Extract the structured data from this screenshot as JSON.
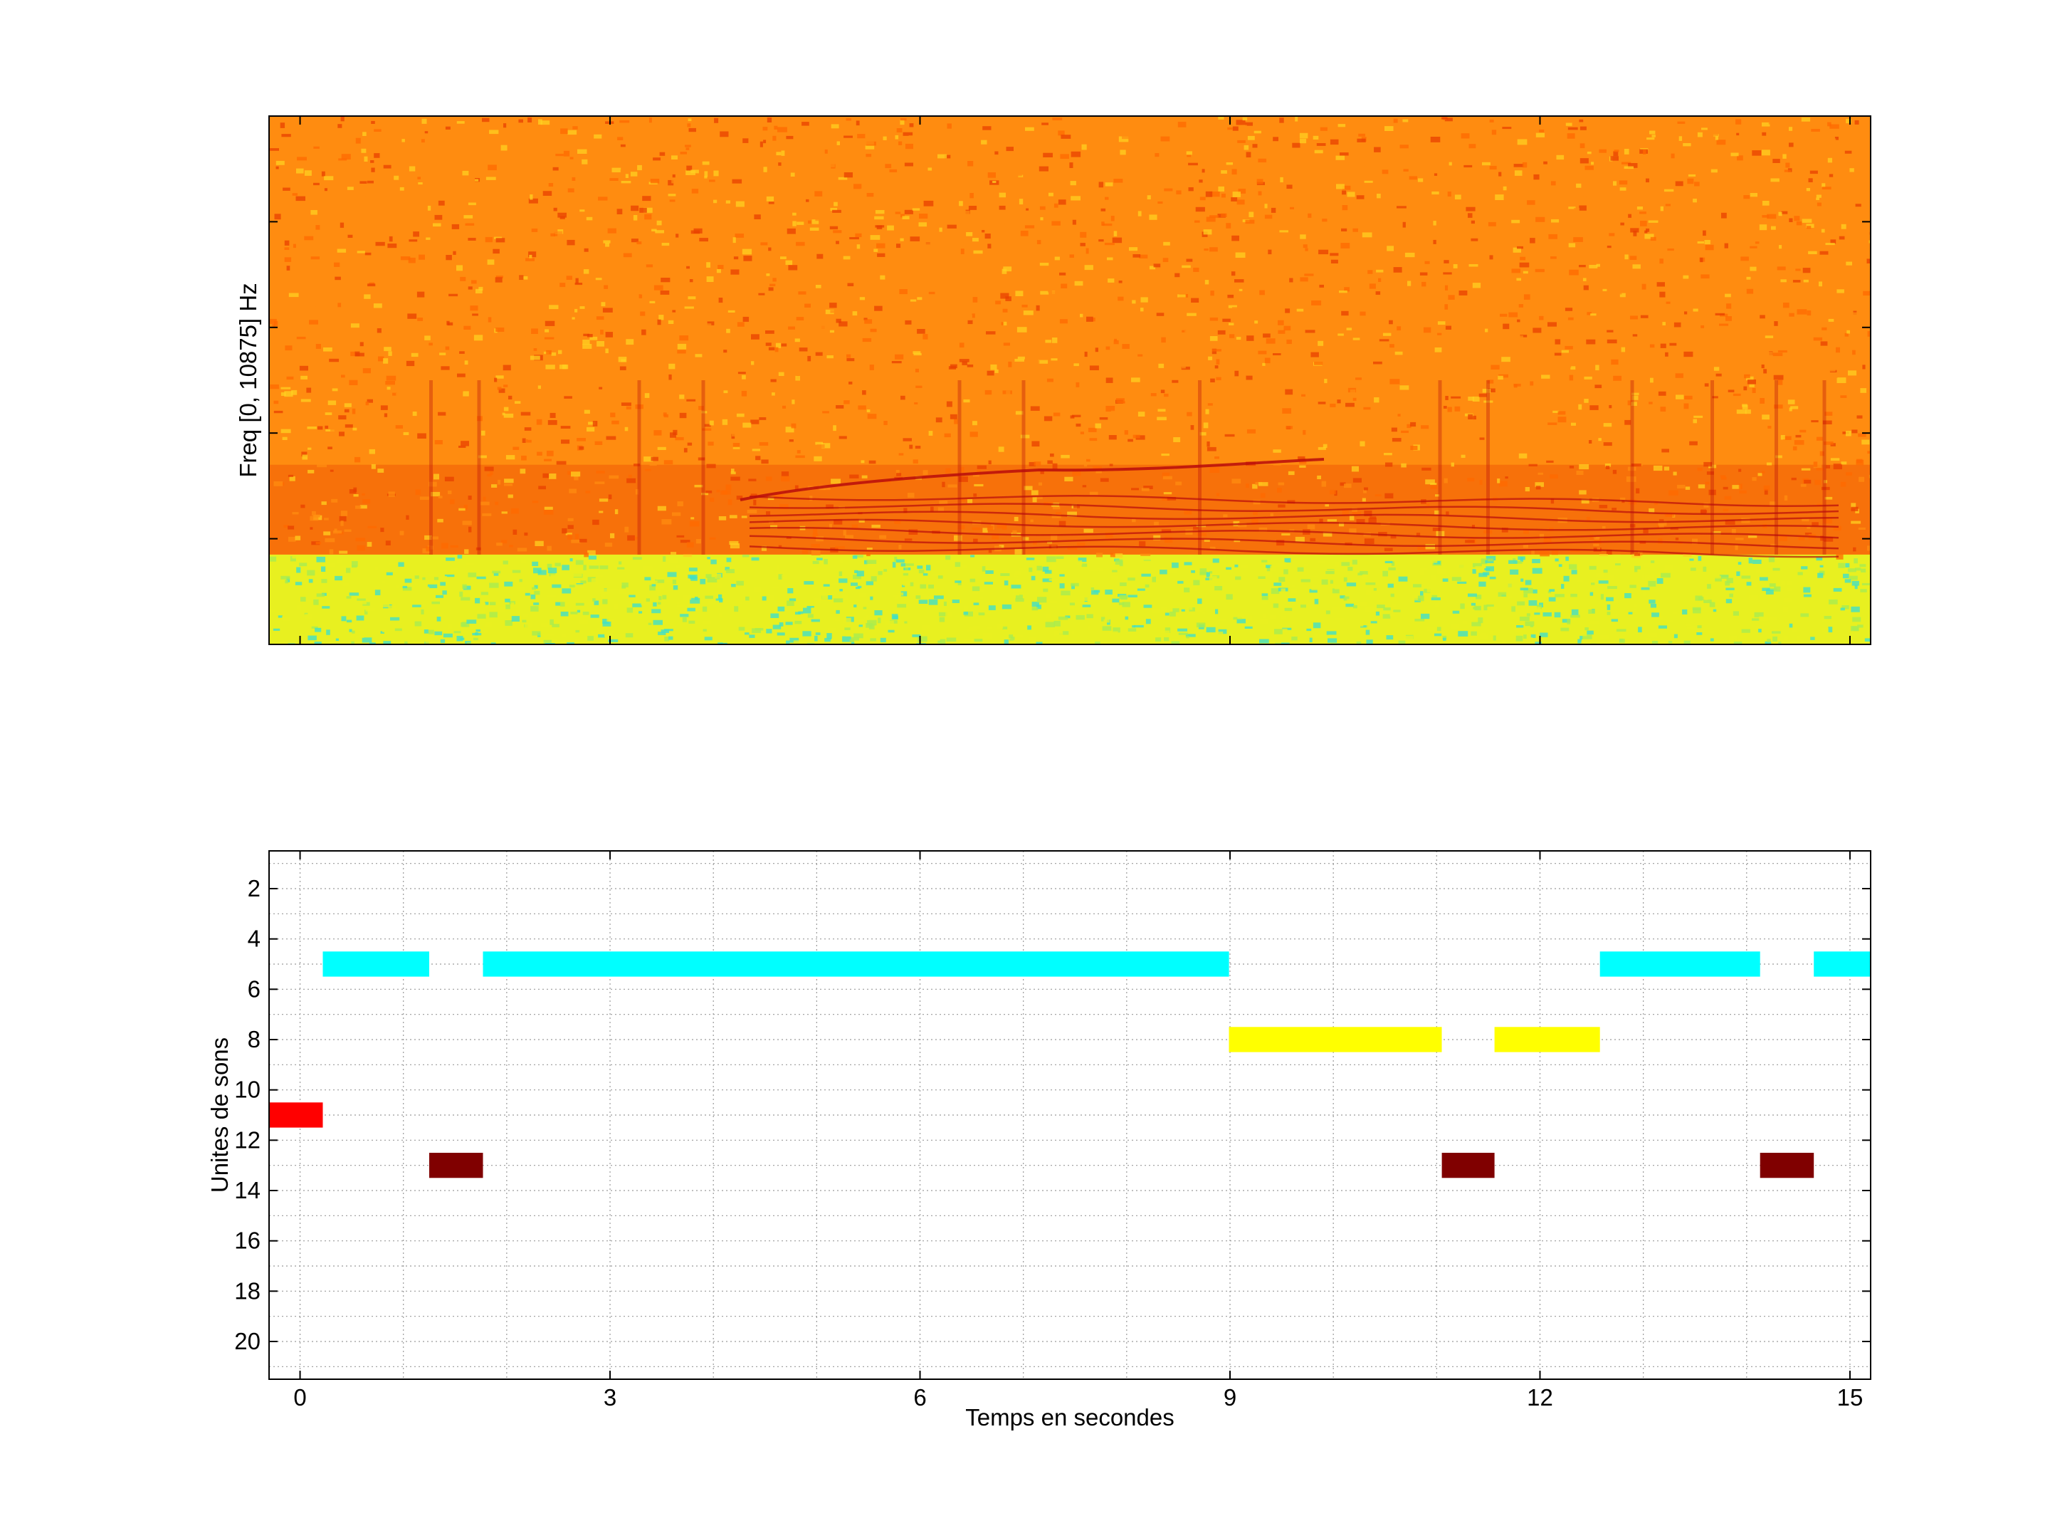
{
  "chart_data": [
    {
      "type": "heatmap",
      "title": "",
      "xlabel": "",
      "ylabel": "Freq [0, 10875] Hz",
      "y_range_hz": [
        0,
        10875
      ],
      "x_range_s": [
        -0.3,
        15.2
      ],
      "colormap": "jet",
      "grid": false,
      "tick_labels_shown": false,
      "low_band_colors": [
        "#e8f020",
        "#a8ec50",
        "#40e0c8"
      ],
      "high_band_colors": [
        "#ff8c10",
        "#ff6a00",
        "#e84000",
        "#ffd020"
      ],
      "harmonic_color": "#b80c0c"
    },
    {
      "type": "bar",
      "subtype": "event-raster",
      "title": "",
      "xlabel": "Temps en secondes",
      "ylabel": "Unites de sons",
      "xlim": [
        -0.3,
        15.2
      ],
      "ylim": [
        21.5,
        0.5
      ],
      "y_reversed": true,
      "grid": true,
      "xticks": [
        {
          "value": 0,
          "label": "0"
        },
        {
          "value": 3,
          "label": "3"
        },
        {
          "value": 6,
          "label": "6"
        },
        {
          "value": 9,
          "label": "9"
        },
        {
          "value": 12,
          "label": "12"
        },
        {
          "value": 15,
          "label": "15"
        }
      ],
      "yticks": [
        {
          "value": 2,
          "label": "2"
        },
        {
          "value": 4,
          "label": "4"
        },
        {
          "value": 6,
          "label": "6"
        },
        {
          "value": 8,
          "label": "8"
        },
        {
          "value": 10,
          "label": "10"
        },
        {
          "value": 12,
          "label": "12"
        },
        {
          "value": 14,
          "label": "14"
        },
        {
          "value": 16,
          "label": "16"
        },
        {
          "value": 18,
          "label": "18"
        },
        {
          "value": 20,
          "label": "20"
        }
      ],
      "segments": [
        {
          "unit": 5,
          "start": 0.22,
          "end": 1.25,
          "color": "#00ffff"
        },
        {
          "unit": 5,
          "start": 1.77,
          "end": 8.99,
          "color": "#00ffff"
        },
        {
          "unit": 5,
          "start": 12.58,
          "end": 14.13,
          "color": "#00ffff"
        },
        {
          "unit": 5,
          "start": 14.65,
          "end": 15.2,
          "color": "#00ffff"
        },
        {
          "unit": 8,
          "start": 8.99,
          "end": 11.05,
          "color": "#ffff00"
        },
        {
          "unit": 8,
          "start": 11.56,
          "end": 12.58,
          "color": "#ffff00"
        },
        {
          "unit": 11,
          "start": -0.3,
          "end": 0.22,
          "color": "#ff0000"
        },
        {
          "unit": 13,
          "start": 1.25,
          "end": 1.77,
          "color": "#800000"
        },
        {
          "unit": 13,
          "start": 11.05,
          "end": 11.56,
          "color": "#800000"
        },
        {
          "unit": 13,
          "start": 14.13,
          "end": 14.65,
          "color": "#800000"
        }
      ]
    }
  ]
}
